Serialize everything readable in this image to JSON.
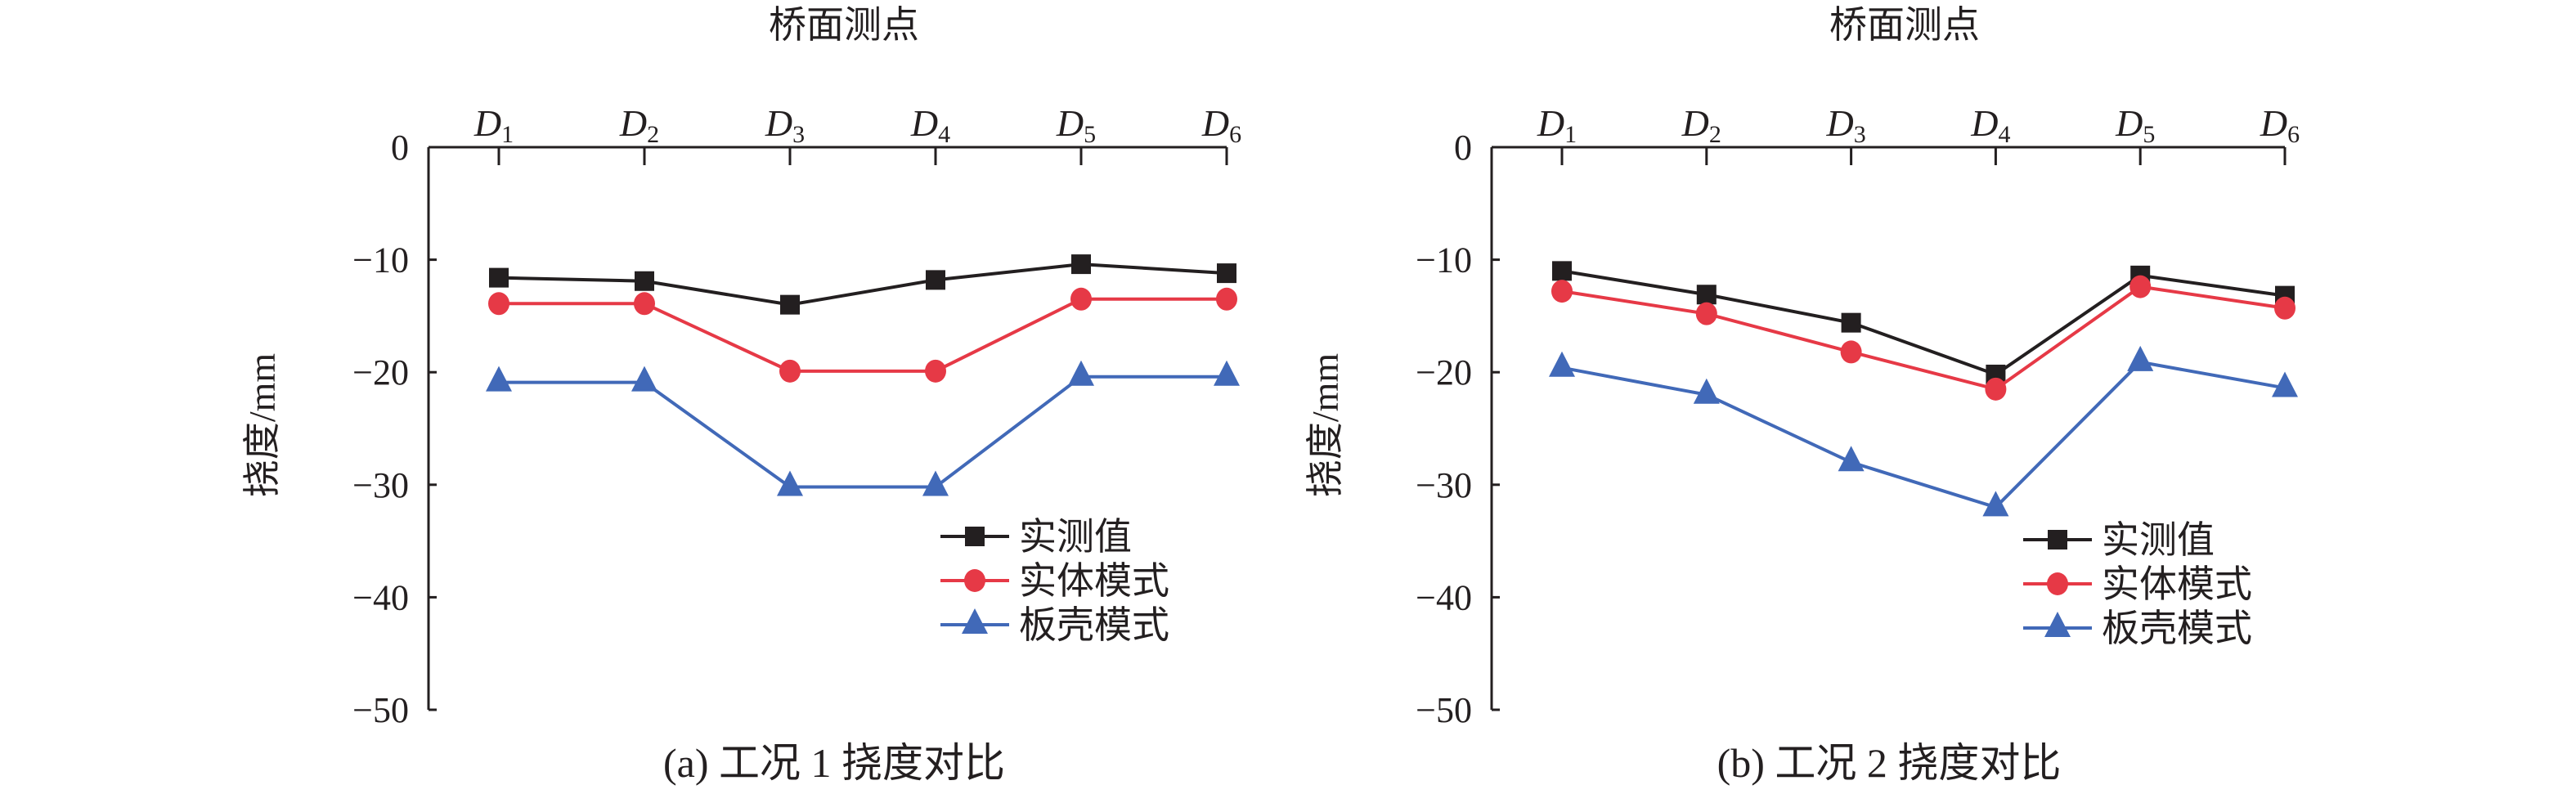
{
  "colors": {
    "axis": "#231f20",
    "measured": "#231f20",
    "solid": "#e63946",
    "shell": "#4169b8"
  },
  "chart_data": [
    {
      "type": "line",
      "caption": "(a) 工况 1 挠度对比",
      "xlabel": "桥面测点",
      "ylabel": "挠度/mm",
      "categories": [
        "D1",
        "D2",
        "D3",
        "D4",
        "D5",
        "D6"
      ],
      "category_letters": [
        "D",
        "D",
        "D",
        "D",
        "D",
        "D"
      ],
      "category_subscripts": [
        "1",
        "2",
        "3",
        "4",
        "5",
        "6"
      ],
      "ylim": [
        -50,
        0
      ],
      "yticks": [
        0,
        -10,
        -20,
        -30,
        -40,
        -50
      ],
      "ytick_labels": [
        "0",
        "−10",
        "−20",
        "−30",
        "−40",
        "−50"
      ],
      "legend_position": "bottom-right",
      "series": [
        {
          "name": "实测值",
          "marker": "square",
          "values": [
            -11.6,
            -11.9,
            -14.0,
            -11.8,
            -10.4,
            -11.2
          ]
        },
        {
          "name": "实体模式",
          "marker": "circle",
          "values": [
            -13.9,
            -13.9,
            -19.9,
            -19.9,
            -13.5,
            -13.5
          ]
        },
        {
          "name": "板壳模式",
          "marker": "triangle",
          "values": [
            -20.9,
            -20.9,
            -30.2,
            -30.2,
            -20.4,
            -20.4
          ]
        }
      ]
    },
    {
      "type": "line",
      "caption": "(b) 工况 2 挠度对比",
      "xlabel": "桥面测点",
      "ylabel": "挠度/mm",
      "categories": [
        "D1",
        "D2",
        "D3",
        "D4",
        "D5",
        "D6"
      ],
      "category_letters": [
        "D",
        "D",
        "D",
        "D",
        "D",
        "D"
      ],
      "category_subscripts": [
        "1",
        "2",
        "3",
        "4",
        "5",
        "6"
      ],
      "ylim": [
        -50,
        0
      ],
      "yticks": [
        0,
        -10,
        -20,
        -30,
        -40,
        -50
      ],
      "ytick_labels": [
        "0",
        "−10",
        "−20",
        "−30",
        "−40",
        "−50"
      ],
      "legend_position": "bottom-right",
      "series": [
        {
          "name": "实测值",
          "marker": "square",
          "values": [
            -11.0,
            -13.1,
            -15.6,
            -20.2,
            -11.4,
            -13.2
          ]
        },
        {
          "name": "实体模式",
          "marker": "circle",
          "values": [
            -12.8,
            -14.8,
            -18.2,
            -21.5,
            -12.4,
            -14.3
          ]
        },
        {
          "name": "板壳模式",
          "marker": "triangle",
          "values": [
            -19.6,
            -22.0,
            -28.0,
            -32.0,
            -19.1,
            -21.4
          ]
        }
      ]
    }
  ]
}
